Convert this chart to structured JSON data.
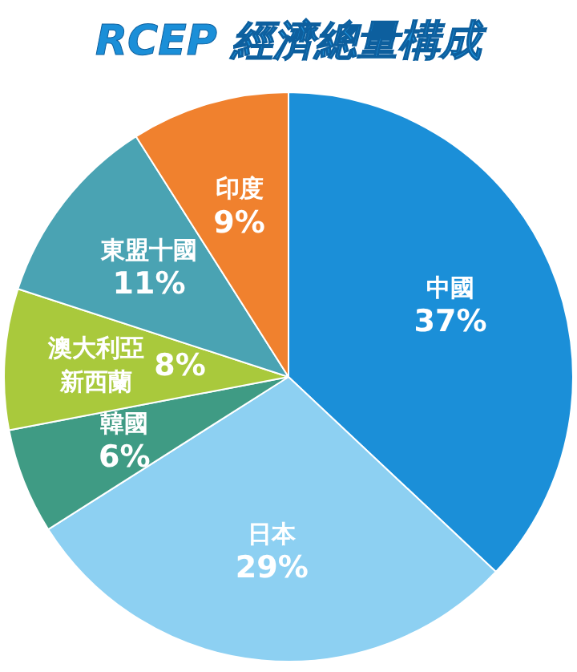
{
  "chart_data": {
    "type": "pie",
    "title": "RCEP 經濟總量構成",
    "categories": [
      "中國",
      "日本",
      "韓國",
      "澳大利亞新西蘭",
      "東盟十國",
      "印度"
    ],
    "values": [
      37,
      29,
      6,
      8,
      11,
      9
    ],
    "value_labels": [
      "37%",
      "29%",
      "6%",
      "8%",
      "11%",
      "9%"
    ],
    "colors": [
      "#1b8fd8",
      "#8dd0f2",
      "#3f9b84",
      "#a9c93c",
      "#4aa3b3",
      "#f0812e"
    ]
  }
}
